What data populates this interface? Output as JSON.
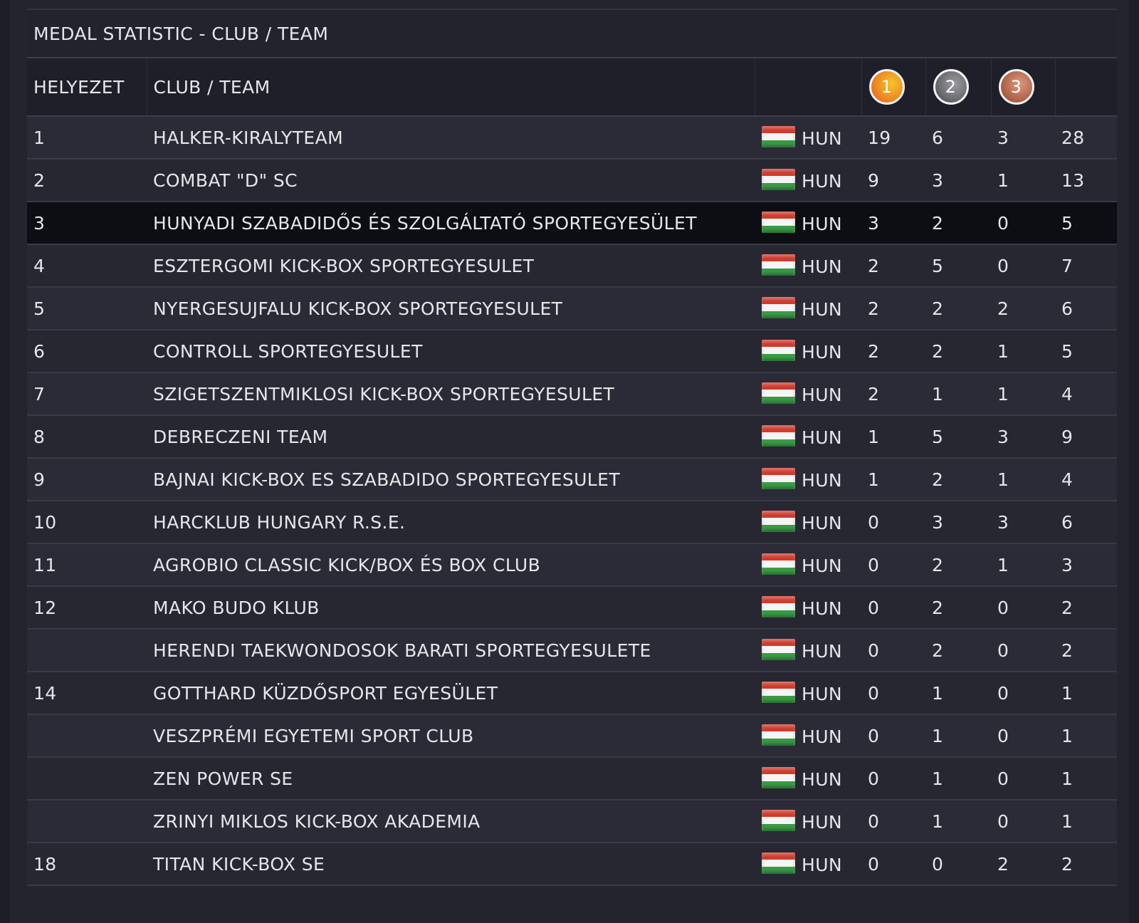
{
  "table_title": "MEDAL STATISTIC - CLUB / TEAM",
  "headers": {
    "rank": "HELYEZET",
    "club": "CLUB / TEAM",
    "gold": "1",
    "silver": "2",
    "bronze": "3"
  },
  "colors": {
    "gold_medal": "#f08a22",
    "silver_medal": "#6b6b72",
    "bronze_medal": "#b3644a",
    "highlight_row": "#0d0e14"
  },
  "rows": [
    {
      "rank": "1",
      "club": "HALKER-KIRALYTEAM",
      "country": "HUN",
      "gold": "19",
      "silver": "6",
      "bronze": "3",
      "total": "28"
    },
    {
      "rank": "2",
      "club": "COMBAT \"D\" SC",
      "country": "HUN",
      "gold": "9",
      "silver": "3",
      "bronze": "1",
      "total": "13"
    },
    {
      "rank": "3",
      "club": "HUNYADI SZABADIDŐS ÉS SZOLGÁLTATÓ SPORTEGYESÜLET",
      "country": "HUN",
      "gold": "3",
      "silver": "2",
      "bronze": "0",
      "total": "5"
    },
    {
      "rank": "4",
      "club": "ESZTERGOMI KICK-BOX SPORTEGYESULET",
      "country": "HUN",
      "gold": "2",
      "silver": "5",
      "bronze": "0",
      "total": "7"
    },
    {
      "rank": "5",
      "club": "NYERGESUJFALU KICK-BOX SPORTEGYESULET",
      "country": "HUN",
      "gold": "2",
      "silver": "2",
      "bronze": "2",
      "total": "6"
    },
    {
      "rank": "6",
      "club": "CONTROLL SPORTEGYESULET",
      "country": "HUN",
      "gold": "2",
      "silver": "2",
      "bronze": "1",
      "total": "5"
    },
    {
      "rank": "7",
      "club": "SZIGETSZENTMIKLOSI KICK-BOX SPORTEGYESULET",
      "country": "HUN",
      "gold": "2",
      "silver": "1",
      "bronze": "1",
      "total": "4"
    },
    {
      "rank": "8",
      "club": "DEBRECZENI TEAM",
      "country": "HUN",
      "gold": "1",
      "silver": "5",
      "bronze": "3",
      "total": "9"
    },
    {
      "rank": "9",
      "club": "BAJNAI KICK-BOX ES SZABADIDO SPORTEGYESULET",
      "country": "HUN",
      "gold": "1",
      "silver": "2",
      "bronze": "1",
      "total": "4"
    },
    {
      "rank": "10",
      "club": "HARCKLUB HUNGARY R.S.E.",
      "country": "HUN",
      "gold": "0",
      "silver": "3",
      "bronze": "3",
      "total": "6"
    },
    {
      "rank": "11",
      "club": "AGROBIO CLASSIC KICK/BOX ÉS BOX CLUB",
      "country": "HUN",
      "gold": "0",
      "silver": "2",
      "bronze": "1",
      "total": "3"
    },
    {
      "rank": "12",
      "club": "MAKO BUDO KLUB",
      "country": "HUN",
      "gold": "0",
      "silver": "2",
      "bronze": "0",
      "total": "2"
    },
    {
      "rank": "",
      "club": "HERENDI TAEKWONDOSOK BARATI SPORTEGYESULETE",
      "country": "HUN",
      "gold": "0",
      "silver": "2",
      "bronze": "0",
      "total": "2"
    },
    {
      "rank": "14",
      "club": "GOTTHARD KÜZDŐSPORT EGYESÜLET",
      "country": "HUN",
      "gold": "0",
      "silver": "1",
      "bronze": "0",
      "total": "1"
    },
    {
      "rank": "",
      "club": "VESZPRÉMI EGYETEMI SPORT CLUB",
      "country": "HUN",
      "gold": "0",
      "silver": "1",
      "bronze": "0",
      "total": "1"
    },
    {
      "rank": "",
      "club": "ZEN POWER SE",
      "country": "HUN",
      "gold": "0",
      "silver": "1",
      "bronze": "0",
      "total": "1"
    },
    {
      "rank": "",
      "club": "ZRINYI MIKLOS KICK-BOX AKADEMIA",
      "country": "HUN",
      "gold": "0",
      "silver": "1",
      "bronze": "0",
      "total": "1"
    },
    {
      "rank": "18",
      "club": "TITAN KICK-BOX SE",
      "country": "HUN",
      "gold": "0",
      "silver": "0",
      "bronze": "2",
      "total": "2"
    }
  ]
}
